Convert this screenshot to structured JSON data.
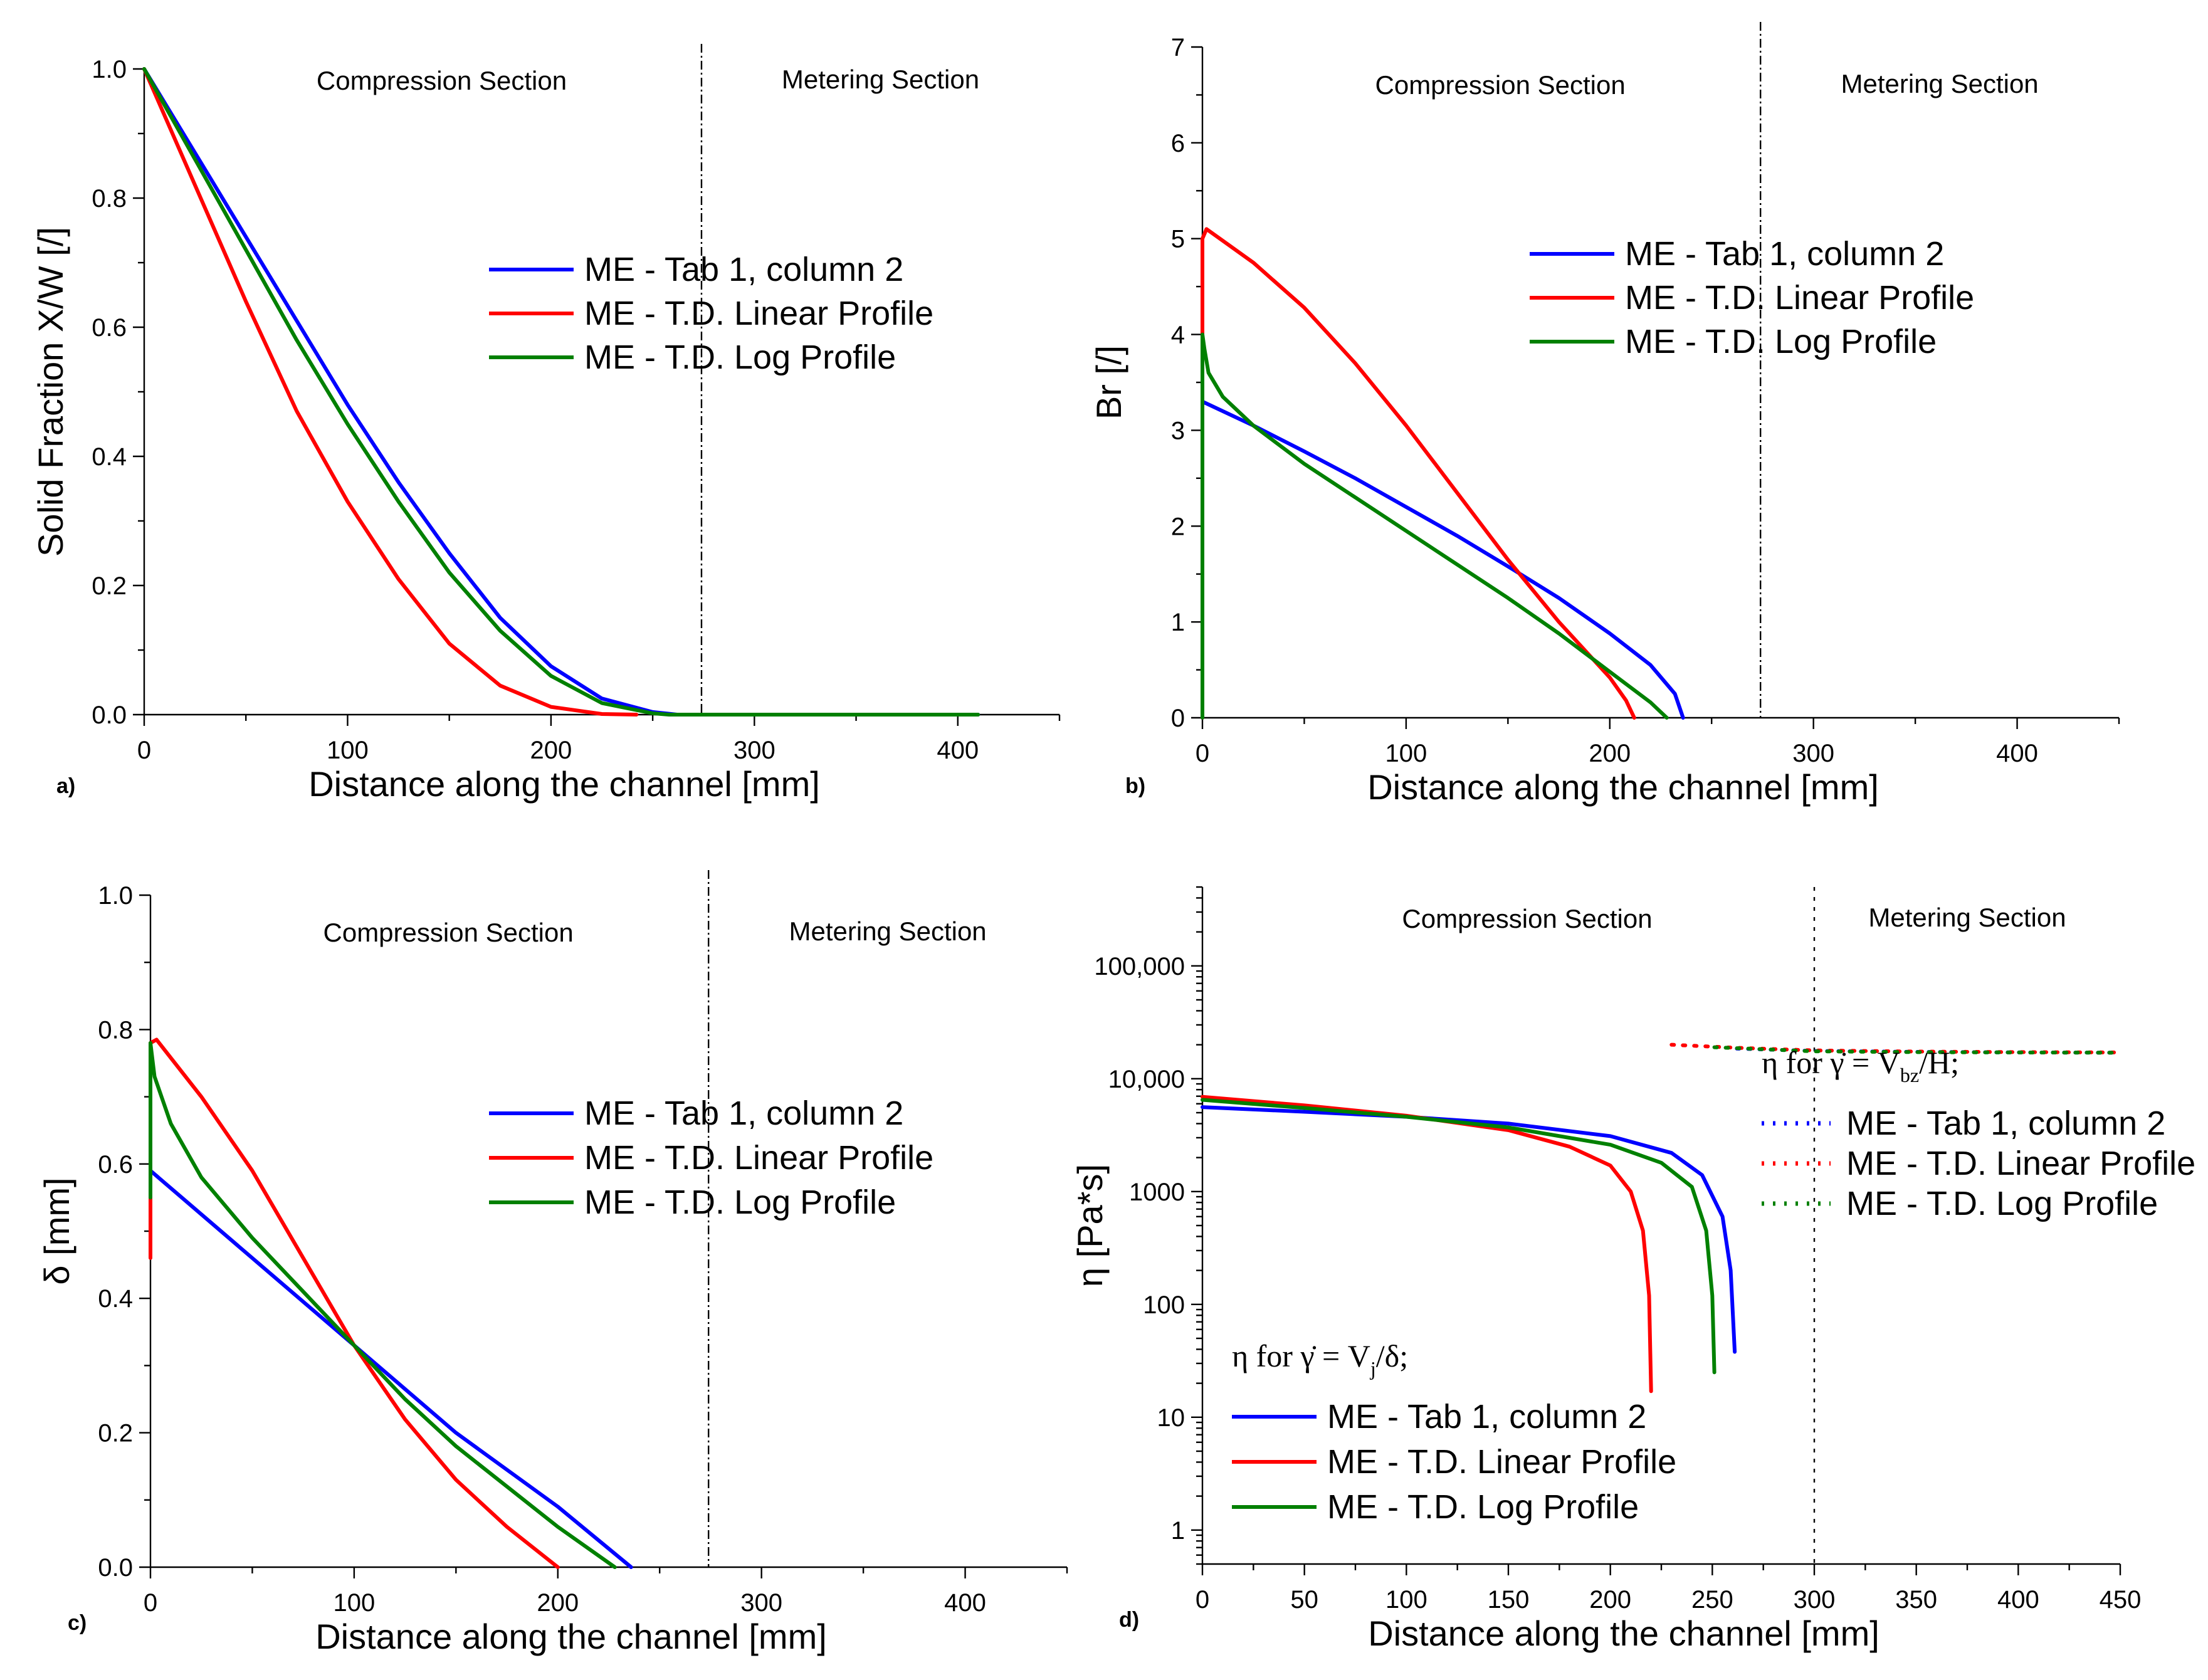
{
  "chart_data": [
    {
      "id": "a",
      "type": "line",
      "panel_label": "a)",
      "xlabel": "Distance along the channel [mm]",
      "ylabel": "Solid Fraction X/W [/]",
      "xlim": [
        0,
        450
      ],
      "ylim": [
        0,
        1.0
      ],
      "x_ticks": [
        0,
        100,
        200,
        300,
        400
      ],
      "y_ticks": [
        0.0,
        0.2,
        0.4,
        0.6,
        0.8,
        1.0
      ],
      "y_tick_labels": [
        "0.0",
        "0.2",
        "0.4",
        "0.6",
        "0.8",
        "1.0"
      ],
      "divider_x": 274,
      "sections": [
        "Compression Section",
        "Metering Section"
      ],
      "legend_position": "center-right",
      "series": [
        {
          "name": "ME - Tab 1, column 2",
          "color": "#0000ff",
          "x": [
            0,
            25,
            50,
            75,
            100,
            125,
            150,
            175,
            200,
            225,
            250,
            262,
            300,
            350,
            410
          ],
          "y": [
            1.0,
            0.87,
            0.74,
            0.61,
            0.48,
            0.36,
            0.25,
            0.15,
            0.075,
            0.025,
            0.004,
            0.0,
            0.0,
            0.0,
            0.0
          ]
        },
        {
          "name": "ME - T.D. Linear Profile",
          "color": "#ff0000",
          "x": [
            0,
            25,
            50,
            75,
            100,
            125,
            150,
            175,
            200,
            225,
            242
          ],
          "y": [
            1.0,
            0.82,
            0.64,
            0.47,
            0.33,
            0.21,
            0.11,
            0.045,
            0.012,
            0.001,
            0.0
          ]
        },
        {
          "name": "ME - T.D. Log Profile",
          "color": "#008000",
          "x": [
            0,
            25,
            50,
            75,
            100,
            125,
            150,
            175,
            200,
            225,
            250,
            258,
            300,
            350,
            410
          ],
          "y": [
            1.0,
            0.86,
            0.72,
            0.58,
            0.45,
            0.33,
            0.22,
            0.13,
            0.06,
            0.018,
            0.002,
            0.0,
            0.0,
            0.0,
            0.0
          ]
        }
      ]
    },
    {
      "id": "b",
      "type": "line",
      "panel_label": "b)",
      "xlabel": "Distance along the channel [mm]",
      "ylabel": "Br [/]",
      "xlim": [
        0,
        450
      ],
      "ylim": [
        0,
        7
      ],
      "x_ticks": [
        0,
        100,
        200,
        300,
        400
      ],
      "y_ticks": [
        0,
        1,
        2,
        3,
        4,
        5,
        6,
        7
      ],
      "y_tick_labels": [
        "0",
        "1",
        "2",
        "3",
        "4",
        "5",
        "6",
        "7"
      ],
      "divider_x": 274,
      "sections": [
        "Compression Section",
        "Metering Section"
      ],
      "legend_position": "upper-right",
      "series": [
        {
          "name": "ME - Tab 1, column 2",
          "color": "#0000ff",
          "x": [
            0,
            25,
            50,
            75,
            100,
            125,
            150,
            175,
            200,
            220,
            232,
            236
          ],
          "y": [
            3.3,
            3.05,
            2.78,
            2.5,
            2.2,
            1.9,
            1.58,
            1.25,
            0.88,
            0.55,
            0.25,
            0.0
          ]
        },
        {
          "name": "ME - T.D. Linear Profile",
          "color": "#ff0000",
          "x": [
            0,
            0,
            2,
            25,
            50,
            75,
            100,
            125,
            150,
            175,
            200,
            208,
            212
          ],
          "y": [
            0,
            5.0,
            5.1,
            4.75,
            4.28,
            3.7,
            3.05,
            2.35,
            1.65,
            1.0,
            0.42,
            0.18,
            0.0
          ]
        },
        {
          "name": "ME - T.D. Log Profile",
          "color": "#008000",
          "x": [
            0,
            0,
            1,
            3,
            10,
            25,
            50,
            75,
            100,
            125,
            150,
            175,
            200,
            220,
            228
          ],
          "y": [
            0,
            4.0,
            3.85,
            3.6,
            3.35,
            3.05,
            2.65,
            2.3,
            1.95,
            1.6,
            1.25,
            0.88,
            0.48,
            0.16,
            0.0
          ]
        }
      ]
    },
    {
      "id": "c",
      "type": "line",
      "panel_label": "c)",
      "xlabel": "Distance along the channel [mm]",
      "ylabel": "δ [mm]",
      "xlim": [
        0,
        450
      ],
      "ylim": [
        0,
        1.0
      ],
      "x_ticks": [
        0,
        100,
        200,
        300,
        400
      ],
      "y_ticks": [
        0.0,
        0.2,
        0.4,
        0.6,
        0.8,
        1.0
      ],
      "y_tick_labels": [
        "0.0",
        "0.2",
        "0.4",
        "0.6",
        "0.8",
        "1.0"
      ],
      "divider_x": 274,
      "sections": [
        "Compression Section",
        "Metering Section"
      ],
      "legend_position": "center-right",
      "series": [
        {
          "name": "ME - Tab 1, column 2",
          "color": "#0000ff",
          "x": [
            0,
            0,
            50,
            100,
            150,
            200,
            236
          ],
          "y": [
            0.49,
            0.59,
            0.46,
            0.33,
            0.2,
            0.09,
            0.0
          ]
        },
        {
          "name": "ME - T.D. Linear Profile",
          "color": "#ff0000",
          "x": [
            0,
            0,
            3,
            25,
            50,
            75,
            100,
            125,
            150,
            175,
            200
          ],
          "y": [
            0.46,
            0.78,
            0.785,
            0.7,
            0.59,
            0.46,
            0.33,
            0.22,
            0.13,
            0.06,
            0.0
          ]
        },
        {
          "name": "ME - T.D. Log Profile",
          "color": "#008000",
          "x": [
            0,
            0,
            2,
            10,
            25,
            50,
            75,
            100,
            125,
            150,
            175,
            200,
            228
          ],
          "y": [
            0.55,
            0.78,
            0.73,
            0.66,
            0.58,
            0.49,
            0.41,
            0.33,
            0.25,
            0.18,
            0.12,
            0.06,
            0.0
          ]
        }
      ]
    },
    {
      "id": "d",
      "type": "line",
      "panel_label": "d)",
      "xlabel": "Distance along the channel [mm]",
      "ylabel": "η [Pa*s]",
      "xlim": [
        0,
        450
      ],
      "ylim": [
        0.5,
        500000
      ],
      "y_scale": "log",
      "x_ticks": [
        0,
        50,
        100,
        150,
        200,
        250,
        300,
        350,
        400,
        450
      ],
      "y_ticks": [
        1,
        10,
        100,
        1000,
        10000,
        100000
      ],
      "y_tick_labels": [
        "1",
        "10",
        "100",
        "1000",
        "10,000",
        "100,000"
      ],
      "divider_x": 300,
      "sections": [
        "Compression Section",
        "Metering Section"
      ],
      "legend_groups": [
        {
          "title_prefix": "η for ",
          "title_math": "γ̇ = V",
          "title_sub": "j",
          "title_suffix": "/δ;",
          "style": "solid",
          "position": "lower-left"
        },
        {
          "title_prefix": "η for ",
          "title_math": "γ̇ = V",
          "title_sub": "bz",
          "title_suffix": "/H;",
          "style": "dotted",
          "position": "right"
        }
      ],
      "series": [
        {
          "name": "ME - Tab 1, column 2",
          "group": 0,
          "color": "#0000ff",
          "x": [
            0,
            50,
            100,
            150,
            200,
            230,
            245,
            255,
            259,
            261
          ],
          "y": [
            5600,
            5100,
            4600,
            4000,
            3100,
            2200,
            1400,
            600,
            200,
            38
          ]
        },
        {
          "name": "ME - T.D. Linear Profile",
          "group": 0,
          "color": "#ff0000",
          "x": [
            0,
            50,
            100,
            150,
            180,
            200,
            210,
            216,
            219,
            220
          ],
          "y": [
            6900,
            5800,
            4700,
            3500,
            2500,
            1700,
            1000,
            450,
            120,
            17
          ]
        },
        {
          "name": "ME - T.D. Log Profile",
          "group": 0,
          "color": "#008000",
          "x": [
            0,
            50,
            100,
            150,
            200,
            225,
            240,
            247,
            250,
            251
          ],
          "y": [
            6500,
            5500,
            4600,
            3700,
            2600,
            1800,
            1100,
            450,
            120,
            25
          ]
        },
        {
          "name": "ME - Tab 1, column 2",
          "group": 1,
          "color": "#0000ff",
          "x": [
            262,
            300,
            350,
            400,
            450
          ],
          "y": [
            18500,
            17600,
            17300,
            17100,
            17000
          ]
        },
        {
          "name": "ME - T.D. Linear Profile",
          "group": 1,
          "color": "#ff0000",
          "x": [
            230,
            262,
            300,
            350,
            400,
            450
          ],
          "y": [
            20000,
            18800,
            17800,
            17400,
            17200,
            17100
          ]
        },
        {
          "name": "ME - T.D. Log Profile",
          "group": 1,
          "color": "#008000",
          "x": [
            251,
            300,
            350,
            400,
            450
          ],
          "y": [
            19000,
            17500,
            17200,
            17100,
            17000
          ]
        }
      ]
    }
  ]
}
